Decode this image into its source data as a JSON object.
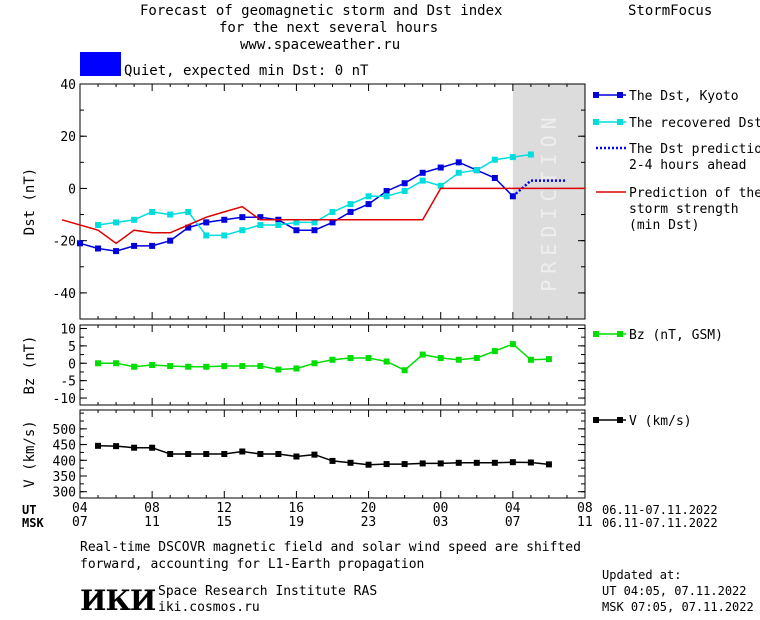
{
  "header": {
    "title_line1": "Forecast of geomagnetic storm and Dst index",
    "title_line2": "for the next several hours",
    "url": "www.spaceweather.ru",
    "brand": "StormFocus"
  },
  "status": {
    "color": "#0000ff",
    "text": "Quiet, expected min Dst: 0 nT"
  },
  "prediction_label": "PREDICTION",
  "x_axis": {
    "ut_label": "UT",
    "msk_label": "MSK",
    "ut_ticks": [
      "04",
      "08",
      "12",
      "16",
      "20",
      "00",
      "04",
      "08"
    ],
    "msk_ticks": [
      "07",
      "11",
      "15",
      "19",
      "23",
      "03",
      "07",
      "11"
    ],
    "ut_range": "06.11-07.11.2022",
    "msk_range": "06.11-07.11.2022"
  },
  "chart_data": [
    {
      "type": "line",
      "ylabel": "Dst (nT)",
      "ylim": [
        -50,
        40
      ],
      "yticks": [
        40,
        20,
        0,
        -20,
        -40
      ],
      "xlim_hours": [
        4,
        32
      ],
      "prediction_start_hour": 28,
      "series": [
        {
          "name": "The Dst, Kyoto",
          "color": "#0000dd",
          "style": "solid-square",
          "x": [
            4,
            5,
            6,
            7,
            8,
            9,
            10,
            11,
            12,
            13,
            14,
            15,
            16,
            17,
            18,
            19,
            20,
            21,
            22,
            23,
            24,
            25,
            26,
            27,
            28
          ],
          "y": [
            -21,
            -23,
            -24,
            -22,
            -22,
            -20,
            -15,
            -13,
            -12,
            -11,
            -11,
            -12,
            -16,
            -16,
            -13,
            -9,
            -6,
            -1,
            2,
            6,
            8,
            10,
            7,
            4,
            -3
          ]
        },
        {
          "name": "The recovered Dst",
          "color": "#00dddd",
          "style": "solid-square",
          "x": [
            5,
            6,
            7,
            8,
            9,
            10,
            11,
            12,
            13,
            14,
            15,
            16,
            17,
            18,
            19,
            20,
            21,
            22,
            23,
            24,
            25,
            26,
            27,
            28,
            29
          ],
          "y": [
            -14,
            -13,
            -12,
            -9,
            -10,
            -9,
            -18,
            -18,
            -16,
            -14,
            -14,
            -13,
            -13,
            -9,
            -6,
            -3,
            -3,
            -1,
            3,
            1,
            6,
            7,
            11,
            12,
            13
          ]
        },
        {
          "name": "The Dst prediction 2-4 hours ahead",
          "color": "#0000ff",
          "style": "dotted",
          "x": [
            28,
            29,
            30,
            31
          ],
          "y": [
            -3,
            3,
            3,
            3
          ]
        },
        {
          "name": "Prediction of the storm strength (min Dst)",
          "color": "#dd0000",
          "style": "solid",
          "x": [
            3,
            5,
            6,
            7,
            8,
            9,
            10,
            11,
            12,
            13,
            14,
            15,
            16,
            17,
            18,
            19,
            20,
            21,
            22,
            23,
            24,
            25,
            26,
            27,
            28,
            29,
            30,
            31,
            32
          ],
          "y": [
            -12,
            -16,
            -21,
            -16,
            -17,
            -17,
            -14,
            -11,
            -9,
            -7,
            -12,
            -12,
            -12,
            -12,
            -12,
            -12,
            -12,
            -12,
            -12,
            -12,
            0,
            0,
            0,
            0,
            0,
            0,
            0,
            0,
            0
          ]
        }
      ],
      "legend": [
        {
          "label_lines": [
            "The Dst, Kyoto"
          ],
          "color": "#0000dd",
          "style": "solid-square"
        },
        {
          "label_lines": [
            "The recovered Dst"
          ],
          "color": "#00dddd",
          "style": "solid-square"
        },
        {
          "label_lines": [
            "The Dst prediction",
            "2-4 hours ahead"
          ],
          "color": "#0000ff",
          "style": "dotted"
        },
        {
          "label_lines": [
            "Prediction of the",
            "storm strength",
            "(min Dst)"
          ],
          "color": "#dd0000",
          "style": "solid"
        }
      ]
    },
    {
      "type": "line",
      "ylabel": "Bz (nT)",
      "ylim": [
        -12,
        11
      ],
      "yticks": [
        10,
        5,
        0,
        -5,
        -10
      ],
      "series": [
        {
          "name": "Bz (nT, GSM)",
          "color": "#00dd00",
          "style": "solid-square",
          "x": [
            5,
            6,
            7,
            8,
            9,
            10,
            11,
            12,
            13,
            14,
            15,
            16,
            17,
            18,
            19,
            20,
            21,
            22,
            23,
            24,
            25,
            26,
            27,
            28,
            29,
            30
          ],
          "y": [
            0,
            0,
            -1,
            -0.5,
            -0.8,
            -1,
            -1,
            -0.8,
            -0.8,
            -0.8,
            -1.8,
            -1.5,
            0,
            1,
            1.5,
            1.5,
            0.5,
            -2,
            2.5,
            1.5,
            1,
            1.5,
            3.5,
            5.5,
            1,
            1.2
          ]
        }
      ],
      "legend": [
        {
          "label_lines": [
            "Bz (nT, GSM)"
          ],
          "color": "#00dd00",
          "style": "solid-square"
        }
      ]
    },
    {
      "type": "line",
      "ylabel": "V (km/s)",
      "ylim": [
        280,
        560
      ],
      "yticks": [
        500,
        450,
        400,
        350,
        300
      ],
      "series": [
        {
          "name": "V (km/s)",
          "color": "#000000",
          "style": "solid-square",
          "x": [
            5,
            6,
            7,
            8,
            9,
            10,
            11,
            12,
            13,
            14,
            15,
            16,
            17,
            18,
            19,
            20,
            21,
            22,
            23,
            24,
            25,
            26,
            27,
            28,
            29,
            30
          ],
          "y": [
            446,
            445,
            440,
            440,
            420,
            420,
            420,
            420,
            428,
            420,
            420,
            412,
            418,
            398,
            392,
            386,
            388,
            388,
            390,
            390,
            392,
            392,
            392,
            394,
            393,
            387
          ]
        }
      ],
      "legend": [
        {
          "label_lines": [
            "V (km/s)"
          ],
          "color": "#000000",
          "style": "solid-square"
        }
      ]
    }
  ],
  "footer": {
    "note_line1": "Real-time DSCOVR magnetic field and solar wind speed are shifted",
    "note_line2": "forward, accounting for L1-Earth propagation",
    "logo_text": "ИКИ",
    "institute": "Space Research Institute RAS",
    "site": "iki.cosmos.ru",
    "updated_label": "Updated at:",
    "updated_ut": "UT   04:05, 07.11.2022",
    "updated_msk": "MSK 07:05, 07.11.2022"
  }
}
